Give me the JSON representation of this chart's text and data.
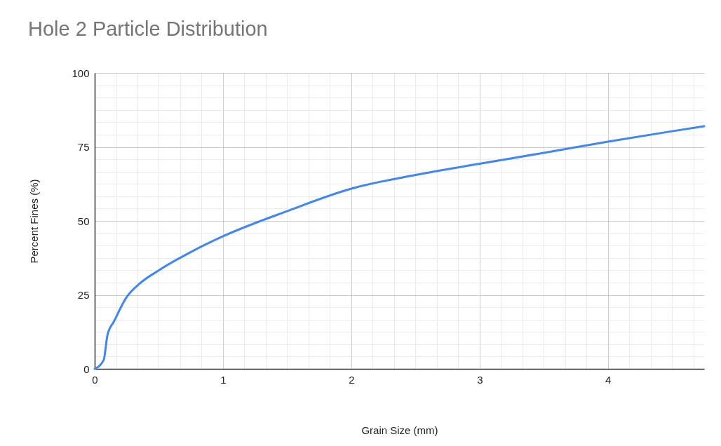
{
  "chart_data": {
    "type": "line",
    "title": "Hole 2 Particle Distribution",
    "xlabel": "Grain Size (mm)",
    "ylabel": "Percent Fines (%)",
    "x": [
      0,
      0.07,
      0.1,
      0.15,
      0.25,
      0.35,
      0.5,
      0.75,
      1,
      1.5,
      2,
      2.5,
      3,
      3.5,
      4,
      4.5,
      4.75
    ],
    "series": [
      {
        "color": "#4285f4",
        "values": [
          0,
          3,
          11.5,
          16,
          24.3,
          28.8,
          33.3,
          39.5,
          44.8,
          53.3,
          60.9,
          65.5,
          69.3,
          73,
          76.8,
          80.3,
          82
        ]
      }
    ],
    "xlim": [
      0,
      4.75
    ],
    "xticks": [
      0,
      {
        "value": 0.167,
        "label": null
      },
      {
        "value": 0.333,
        "label": null
      },
      {
        "value": 0.5,
        "label": null
      },
      {
        "value": 0.667,
        "label": null
      },
      {
        "value": 0.833,
        "label": null
      },
      1,
      {
        "value": 1.167,
        "label": null
      },
      {
        "value": 1.333,
        "label": null
      },
      {
        "value": 1.5,
        "label": null
      },
      {
        "value": 1.667,
        "label": null
      },
      {
        "value": 1.833,
        "label": null
      },
      2,
      {
        "value": 2.167,
        "label": null
      },
      {
        "value": 2.333,
        "label": null
      },
      {
        "value": 2.5,
        "label": null
      },
      {
        "value": 2.667,
        "label": null
      },
      {
        "value": 2.833,
        "label": null
      },
      3,
      {
        "value": 3.167,
        "label": null
      },
      {
        "value": 3.333,
        "label": null
      },
      {
        "value": 3.5,
        "label": null
      },
      {
        "value": 3.667,
        "label": null
      },
      {
        "value": 3.833,
        "label": null
      },
      4,
      {
        "value": 4.167,
        "label": null
      },
      {
        "value": 4.333,
        "label": null
      },
      {
        "value": 4.5,
        "label": null
      },
      {
        "value": 4.667,
        "label": null
      }
    ],
    "ylim": [
      0,
      100
    ],
    "yticks": [
      0,
      {
        "value": 4.17,
        "label": null
      },
      {
        "value": 8.33,
        "label": null
      },
      {
        "value": 12.5,
        "label": null
      },
      {
        "value": 16.67,
        "label": null
      },
      {
        "value": 20.83,
        "label": null
      },
      25,
      {
        "value": 29.17,
        "label": null
      },
      {
        "value": 33.33,
        "label": null
      },
      {
        "value": 37.5,
        "label": null
      },
      {
        "value": 41.67,
        "label": null
      },
      {
        "value": 45.83,
        "label": null
      },
      50,
      {
        "value": 54.17,
        "label": null
      },
      {
        "value": 58.33,
        "label": null
      },
      {
        "value": 62.5,
        "label": null
      },
      {
        "value": 66.67,
        "label": null
      },
      {
        "value": 70.83,
        "label": null
      },
      75,
      {
        "value": 79.17,
        "label": null
      },
      {
        "value": 83.33,
        "label": null
      },
      {
        "value": 87.5,
        "label": null
      },
      {
        "value": 91.67,
        "label": null
      },
      {
        "value": 95.83,
        "label": null
      },
      100
    ],
    "grid": true,
    "marker": "none",
    "line_style": "solid"
  }
}
